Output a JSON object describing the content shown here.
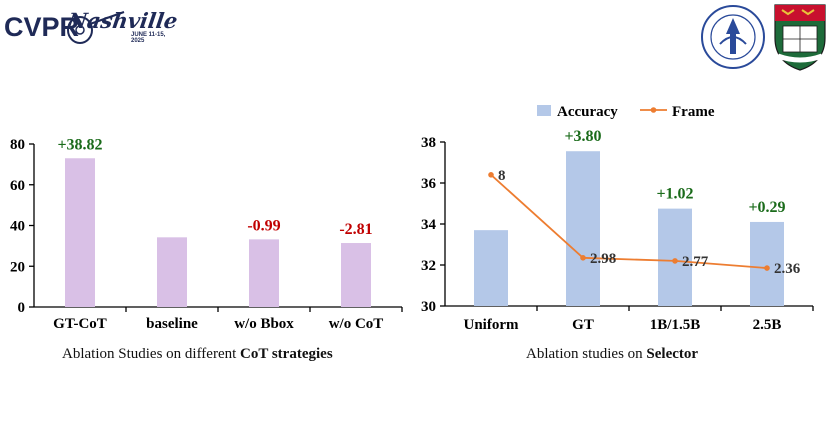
{
  "header": {
    "conference_logo": {
      "text": "CVPR",
      "script": "Nashville",
      "dates": "JUNE 11-15, 2025"
    },
    "university_seal_1": "beihang-university-seal",
    "university_seal_2": "hku-crest"
  },
  "captions": {
    "left": {
      "prefix": "Ablation Studies on different ",
      "bold": "CoT strategies"
    },
    "right": {
      "prefix": "Ablation studies on ",
      "bold": "Selector"
    }
  },
  "colors": {
    "bar_left": "#d9c0e6",
    "bar_right": "#b4c8e8",
    "line": "#ed7d31",
    "positive_delta": "#1a6b1a",
    "negative_delta": "#c00000"
  },
  "chart_data": [
    {
      "type": "bar",
      "categories": [
        "GT-CoT",
        "baseline",
        "w/o Bbox",
        "w/o CoT"
      ],
      "values": [
        73,
        34.2,
        33.2,
        31.4
      ],
      "annotations": [
        "+38.82",
        "",
        "-0.99",
        "-2.81"
      ],
      "ylim": [
        0,
        80
      ],
      "yticks": [
        "0",
        "20",
        "40",
        "60",
        "80"
      ],
      "xlabel": "",
      "ylabel": "",
      "title": "",
      "grid": false
    },
    {
      "type": "bar+line",
      "categories": [
        "Uniform",
        "GT",
        "1B/1.5B",
        "2.5B"
      ],
      "legend": [
        "Accuracy",
        "Frame"
      ],
      "legend_position": "top",
      "series": [
        {
          "name": "Accuracy",
          "kind": "bar",
          "values": [
            33.7,
            37.55,
            34.75,
            34.1
          ],
          "annotations": [
            "",
            "+3.80",
            "+1.02",
            "+0.29"
          ]
        },
        {
          "name": "Frame",
          "kind": "line",
          "values": [
            8,
            2.98,
            2.77,
            2.36
          ],
          "labels": [
            "8",
            "2.98",
            "2.77",
            "2.36"
          ],
          "plotted_on_axis": [
            36.4,
            32.35,
            32.2,
            31.85
          ]
        }
      ],
      "ylim": [
        30,
        38
      ],
      "yticks": [
        "30",
        "32",
        "34",
        "36",
        "38"
      ],
      "xlabel": "",
      "ylabel": "",
      "title": "",
      "grid": false
    }
  ]
}
